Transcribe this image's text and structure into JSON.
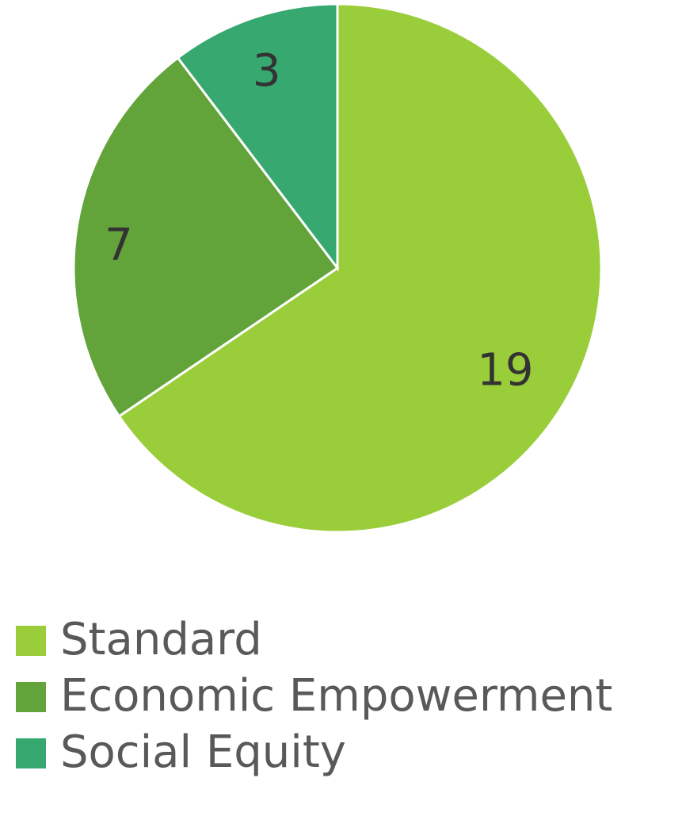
{
  "chart_data": {
    "type": "pie",
    "categories": [
      "Standard",
      "Economic Empowerment",
      "Social Equity"
    ],
    "values": [
      19,
      7,
      3
    ],
    "colors": [
      "#9acd3a",
      "#62a43a",
      "#37a870"
    ],
    "legend": "bottom"
  }
}
